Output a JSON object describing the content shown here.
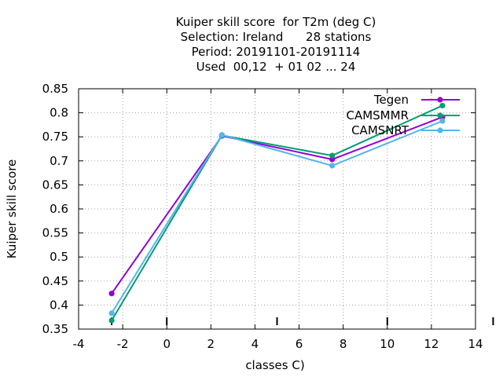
{
  "chart_data": {
    "type": "line",
    "title_lines": [
      "Kuiper skill score  for T2m (deg C)",
      "Selection: Ireland      28 stations",
      "Period: 20191101-20191114",
      "Used  00,12  + 01 02 ... 24"
    ],
    "xlabel": "classes C)",
    "ylabel": "Kuiper skill score",
    "xlim": [
      -4,
      14
    ],
    "ylim": [
      0.35,
      0.85
    ],
    "x_ticks": [
      -4,
      -2,
      0,
      2,
      4,
      6,
      8,
      10,
      12,
      14
    ],
    "y_ticks": [
      0.35,
      0.4,
      0.45,
      0.5,
      0.55,
      0.6,
      0.65,
      0.7,
      0.75,
      0.8,
      0.85
    ],
    "grid": true,
    "legend_position": "top-right",
    "x": [
      -2.5,
      2.5,
      7.5,
      12.5
    ],
    "series": [
      {
        "name": "Tegen",
        "color": "#9400d3",
        "values": [
          0.424,
          0.752,
          0.703,
          0.791
        ]
      },
      {
        "name": "CAMSMMR",
        "color": "#009e73",
        "values": [
          0.368,
          0.753,
          0.711,
          0.815
        ]
      },
      {
        "name": "CAMSNRT",
        "color": "#56b4e9",
        "values": [
          0.383,
          0.754,
          0.69,
          0.783
        ]
      }
    ],
    "bottom_tick_marks": [
      -2.5,
      0,
      5,
      10,
      14.8
    ]
  }
}
